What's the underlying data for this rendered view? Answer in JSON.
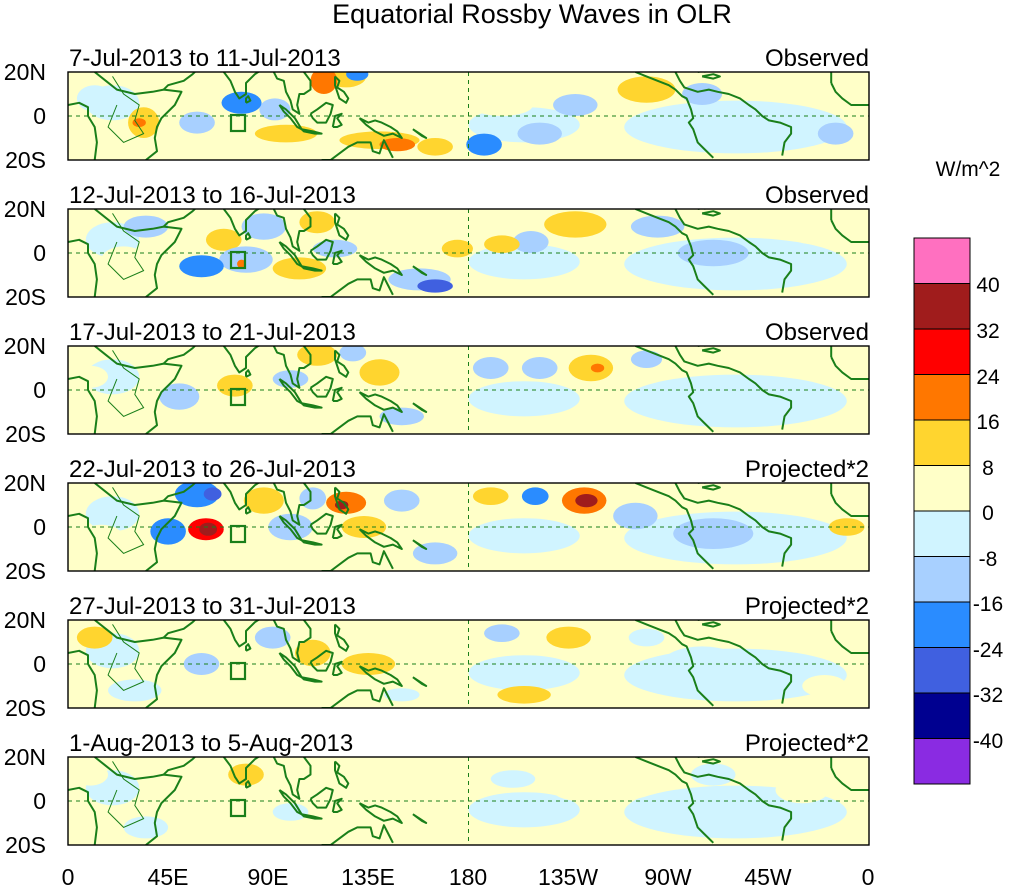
{
  "chart_data": {
    "type": "heatmap",
    "title": "Equatorial Rossby Waves in OLR",
    "units": "W/m^2",
    "x_tick_labels": [
      "0",
      "45E",
      "90E",
      "135E",
      "180",
      "135W",
      "90W",
      "45W",
      "0"
    ],
    "x_tick_lon": [
      0,
      45,
      90,
      135,
      180,
      225,
      270,
      315,
      360
    ],
    "y_tick_labels": [
      "20N",
      "0",
      "20S"
    ],
    "y_tick_lat": [
      20,
      0,
      -20
    ],
    "xlim": [
      0,
      360
    ],
    "ylim": [
      -20,
      20
    ],
    "colorbar": {
      "tick_labels": [
        "40",
        "32",
        "24",
        "16",
        "8",
        "0",
        "-8",
        "-16",
        "-24",
        "-32",
        "-40"
      ],
      "colors": [
        "#ff70c0",
        "#a01c1c",
        "#ff0000",
        "#ff7700",
        "#ffd52f",
        "#ffffc8",
        "#d0f4ff",
        "#a8d0ff",
        "#2a8cff",
        "#4060e0",
        "#000090",
        "#8a2be2"
      ]
    },
    "panels": [
      {
        "period": "7-Jul-2013 to 11-Jul-2013",
        "type_label": "Observed",
        "anomalies": [
          {
            "lon": 115,
            "lat": 16,
            "rlon": 6,
            "rlat": 6,
            "value": 20
          },
          {
            "lon": 125,
            "lat": 18,
            "rlon": 9,
            "rlat": 5,
            "value": 12
          },
          {
            "lon": 130,
            "lat": 19,
            "rlon": 5,
            "rlat": 3,
            "value": -22
          },
          {
            "lon": 78,
            "lat": 6,
            "rlon": 9,
            "rlat": 5,
            "value": -22
          },
          {
            "lon": 93,
            "lat": 3,
            "rlon": 7,
            "rlat": 5,
            "value": -14
          },
          {
            "lon": 58,
            "lat": -3,
            "rlon": 8,
            "rlat": 5,
            "value": -10
          },
          {
            "lon": 34,
            "lat": -3,
            "rlon": 7,
            "rlat": 7,
            "value": 10
          },
          {
            "lon": 32,
            "lat": -3,
            "rlon": 3,
            "rlat": 2,
            "value": 18
          },
          {
            "lon": 52,
            "lat": 12,
            "rlon": 8,
            "rlat": 6,
            "value": 8
          },
          {
            "lon": 98,
            "lat": -8,
            "rlon": 14,
            "rlat": 4,
            "value": 10
          },
          {
            "lon": 140,
            "lat": -11,
            "rlon": 18,
            "rlat": 4,
            "value": 10
          },
          {
            "lon": 148,
            "lat": -13,
            "rlon": 8,
            "rlat": 3,
            "value": 20
          },
          {
            "lon": 165,
            "lat": -14,
            "rlon": 8,
            "rlat": 4,
            "value": 10
          },
          {
            "lon": 187,
            "lat": -13,
            "rlon": 8,
            "rlat": 5,
            "value": -22
          },
          {
            "lon": 212,
            "lat": -8,
            "rlon": 10,
            "rlat": 5,
            "value": -10
          },
          {
            "lon": 195,
            "lat": 5,
            "rlon": 14,
            "rlat": 5,
            "value": 5
          },
          {
            "lon": 228,
            "lat": 5,
            "rlon": 10,
            "rlat": 5,
            "value": -10
          },
          {
            "lon": 260,
            "lat": 12,
            "rlon": 13,
            "rlat": 6,
            "value": 10
          },
          {
            "lon": 285,
            "lat": 10,
            "rlon": 9,
            "rlat": 5,
            "value": -8
          },
          {
            "lon": 300,
            "lat": -2,
            "rlon": 22,
            "rlat": 8,
            "value": -6
          },
          {
            "lon": 345,
            "lat": -8,
            "rlon": 8,
            "rlat": 5,
            "value": -8
          },
          {
            "lon": 12,
            "lat": 8,
            "rlon": 8,
            "rlat": 6,
            "value": -6
          }
        ]
      },
      {
        "period": "12-Jul-2013 to 16-Jul-2013",
        "type_label": "Observed",
        "anomalies": [
          {
            "lon": 60,
            "lat": -6,
            "rlon": 10,
            "rlat": 5,
            "value": -20
          },
          {
            "lon": 80,
            "lat": -3,
            "rlon": 12,
            "rlat": 6,
            "value": -12
          },
          {
            "lon": 78,
            "lat": -5,
            "rlon": 2,
            "rlat": 2,
            "value": 22
          },
          {
            "lon": 70,
            "lat": 6,
            "rlon": 8,
            "rlat": 5,
            "value": 9
          },
          {
            "lon": 104,
            "lat": -7,
            "rlon": 12,
            "rlat": 5,
            "value": 9
          },
          {
            "lon": 88,
            "lat": 12,
            "rlon": 10,
            "rlat": 6,
            "value": -10
          },
          {
            "lon": 112,
            "lat": 14,
            "rlon": 8,
            "rlat": 5,
            "value": 10
          },
          {
            "lon": 120,
            "lat": 2,
            "rlon": 10,
            "rlat": 4,
            "value": -10
          },
          {
            "lon": 150,
            "lat": 5,
            "rlon": 10,
            "rlat": 4,
            "value": 6
          },
          {
            "lon": 158,
            "lat": -12,
            "rlon": 14,
            "rlat": 5,
            "value": -14
          },
          {
            "lon": 165,
            "lat": -15,
            "rlon": 8,
            "rlat": 3,
            "value": -24
          },
          {
            "lon": 175,
            "lat": 2,
            "rlon": 7,
            "rlat": 4,
            "value": 10
          },
          {
            "lon": 195,
            "lat": 4,
            "rlon": 8,
            "rlat": 4,
            "value": 9
          },
          {
            "lon": 208,
            "lat": 5,
            "rlon": 8,
            "rlat": 5,
            "value": -8
          },
          {
            "lon": 228,
            "lat": 13,
            "rlon": 14,
            "rlat": 6,
            "value": 10
          },
          {
            "lon": 265,
            "lat": 12,
            "rlon": 12,
            "rlat": 5,
            "value": -8
          },
          {
            "lon": 290,
            "lat": 0,
            "rlon": 16,
            "rlat": 6,
            "value": -8
          },
          {
            "lon": 335,
            "lat": 10,
            "rlon": 12,
            "rlat": 6,
            "value": 6
          },
          {
            "lon": 25,
            "lat": -3,
            "rlon": 10,
            "rlat": 6,
            "value": 7
          },
          {
            "lon": 35,
            "lat": 12,
            "rlon": 10,
            "rlat": 5,
            "value": -8
          }
        ]
      },
      {
        "period": "17-Jul-2013 to 21-Jul-2013",
        "type_label": "Observed",
        "anomalies": [
          {
            "lon": 50,
            "lat": -3,
            "rlon": 9,
            "rlat": 6,
            "value": -10
          },
          {
            "lon": 75,
            "lat": 2,
            "rlon": 8,
            "rlat": 5,
            "value": 9
          },
          {
            "lon": 100,
            "lat": 5,
            "rlon": 8,
            "rlat": 4,
            "value": -8
          },
          {
            "lon": 112,
            "lat": 16,
            "rlon": 9,
            "rlat": 5,
            "value": 10
          },
          {
            "lon": 128,
            "lat": 17,
            "rlon": 6,
            "rlat": 4,
            "value": -12
          },
          {
            "lon": 140,
            "lat": 8,
            "rlon": 9,
            "rlat": 6,
            "value": 9
          },
          {
            "lon": 165,
            "lat": -5,
            "rlon": 8,
            "rlat": 4,
            "value": 7
          },
          {
            "lon": 190,
            "lat": 10,
            "rlon": 8,
            "rlat": 5,
            "value": -10
          },
          {
            "lon": 212,
            "lat": 10,
            "rlon": 8,
            "rlat": 5,
            "value": -8
          },
          {
            "lon": 235,
            "lat": 10,
            "rlon": 10,
            "rlat": 6,
            "value": 12
          },
          {
            "lon": 238,
            "lat": 10,
            "rlon": 3,
            "rlat": 2,
            "value": 20
          },
          {
            "lon": 260,
            "lat": 14,
            "rlon": 7,
            "rlat": 4,
            "value": -8
          },
          {
            "lon": 300,
            "lat": -2,
            "rlon": 22,
            "rlat": 7,
            "value": -7
          },
          {
            "lon": 340,
            "lat": 12,
            "rlon": 10,
            "rlat": 5,
            "value": 8
          },
          {
            "lon": 10,
            "lat": 6,
            "rlon": 8,
            "rlat": 5,
            "value": 7
          },
          {
            "lon": 150,
            "lat": -12,
            "rlon": 10,
            "rlat": 4,
            "value": -8
          }
        ]
      },
      {
        "period": "22-Jul-2013 to 26-Jul-2013",
        "type_label": "Projected*2",
        "anomalies": [
          {
            "lon": 45,
            "lat": -2,
            "rlon": 8,
            "rlat": 6,
            "value": -20
          },
          {
            "lon": 62,
            "lat": -1,
            "rlon": 8,
            "rlat": 5,
            "value": 26
          },
          {
            "lon": 63,
            "lat": -1,
            "rlon": 4,
            "rlat": 3,
            "value": 34
          },
          {
            "lon": 58,
            "lat": 15,
            "rlon": 10,
            "rlat": 6,
            "value": -20
          },
          {
            "lon": 65,
            "lat": 15,
            "rlon": 4,
            "rlat": 3,
            "value": -30
          },
          {
            "lon": 88,
            "lat": 12,
            "rlon": 9,
            "rlat": 6,
            "value": 10
          },
          {
            "lon": 100,
            "lat": 0,
            "rlon": 10,
            "rlat": 6,
            "value": -14
          },
          {
            "lon": 110,
            "lat": 13,
            "rlon": 6,
            "rlat": 5,
            "value": -14
          },
          {
            "lon": 125,
            "lat": 11,
            "rlon": 9,
            "rlat": 5,
            "value": 20
          },
          {
            "lon": 123,
            "lat": 10,
            "rlon": 3,
            "rlat": 2,
            "value": 34
          },
          {
            "lon": 133,
            "lat": 0,
            "rlon": 10,
            "rlat": 5,
            "value": 10
          },
          {
            "lon": 150,
            "lat": 12,
            "rlon": 8,
            "rlat": 5,
            "value": -10
          },
          {
            "lon": 190,
            "lat": 14,
            "rlon": 8,
            "rlat": 4,
            "value": 12
          },
          {
            "lon": 210,
            "lat": 14,
            "rlon": 6,
            "rlat": 4,
            "value": -20
          },
          {
            "lon": 232,
            "lat": 12,
            "rlon": 10,
            "rlat": 6,
            "value": 22
          },
          {
            "lon": 233,
            "lat": 12,
            "rlon": 5,
            "rlat": 3,
            "value": 34
          },
          {
            "lon": 255,
            "lat": 5,
            "rlon": 10,
            "rlat": 6,
            "value": -9
          },
          {
            "lon": 165,
            "lat": -12,
            "rlon": 10,
            "rlat": 5,
            "value": -8
          },
          {
            "lon": 290,
            "lat": -3,
            "rlon": 18,
            "rlat": 7,
            "value": -8
          },
          {
            "lon": 350,
            "lat": 0,
            "rlon": 8,
            "rlat": 4,
            "value": 9
          },
          {
            "lon": 15,
            "lat": -5,
            "rlon": 10,
            "rlat": 6,
            "value": 7
          }
        ]
      },
      {
        "period": "27-Jul-2013 to 31-Jul-2013",
        "type_label": "Projected*2",
        "anomalies": [
          {
            "lon": 12,
            "lat": 12,
            "rlon": 8,
            "rlat": 5,
            "value": 9
          },
          {
            "lon": 55,
            "lat": 12,
            "rlon": 7,
            "rlat": 5,
            "value": 8
          },
          {
            "lon": 60,
            "lat": 0,
            "rlon": 8,
            "rlat": 5,
            "value": -10
          },
          {
            "lon": 92,
            "lat": 12,
            "rlon": 8,
            "rlat": 5,
            "value": -8
          },
          {
            "lon": 110,
            "lat": 5,
            "rlon": 8,
            "rlat": 6,
            "value": 10
          },
          {
            "lon": 135,
            "lat": 0,
            "rlon": 12,
            "rlat": 5,
            "value": 10
          },
          {
            "lon": 160,
            "lat": 12,
            "rlon": 10,
            "rlat": 5,
            "value": 6
          },
          {
            "lon": 195,
            "lat": 14,
            "rlon": 8,
            "rlat": 4,
            "value": -8
          },
          {
            "lon": 225,
            "lat": 12,
            "rlon": 10,
            "rlat": 5,
            "value": 10
          },
          {
            "lon": 260,
            "lat": 12,
            "rlon": 8,
            "rlat": 4,
            "value": -7
          },
          {
            "lon": 205,
            "lat": -14,
            "rlon": 12,
            "rlat": 4,
            "value": 10
          },
          {
            "lon": 285,
            "lat": 0,
            "rlon": 18,
            "rlat": 8,
            "value": -7
          },
          {
            "lon": 340,
            "lat": -10,
            "rlon": 10,
            "rlat": 5,
            "value": 6
          },
          {
            "lon": 30,
            "lat": -12,
            "rlon": 12,
            "rlat": 5,
            "value": -6
          },
          {
            "lon": 150,
            "lat": -14,
            "rlon": 8,
            "rlat": 3,
            "value": -7
          }
        ]
      },
      {
        "period": "1-Aug-2013 to 5-Aug-2013",
        "type_label": "Projected*2",
        "anomalies": [
          {
            "lon": 10,
            "lat": 12,
            "rlon": 8,
            "rlat": 5,
            "value": 7
          },
          {
            "lon": 58,
            "lat": 0,
            "rlon": 6,
            "rlat": 4,
            "value": 8
          },
          {
            "lon": 80,
            "lat": 12,
            "rlon": 8,
            "rlat": 5,
            "value": 9
          },
          {
            "lon": 100,
            "lat": -5,
            "rlon": 8,
            "rlat": 4,
            "value": -7
          },
          {
            "lon": 120,
            "lat": 8,
            "rlon": 10,
            "rlat": 5,
            "value": 7
          },
          {
            "lon": 150,
            "lat": 5,
            "rlon": 10,
            "rlat": 5,
            "value": 6
          },
          {
            "lon": 170,
            "lat": -5,
            "rlon": 10,
            "rlat": 5,
            "value": 7
          },
          {
            "lon": 200,
            "lat": 10,
            "rlon": 10,
            "rlat": 4,
            "value": -7
          },
          {
            "lon": 230,
            "lat": 5,
            "rlon": 12,
            "rlat": 5,
            "value": 6
          },
          {
            "lon": 262,
            "lat": -3,
            "rlon": 10,
            "rlat": 5,
            "value": -7
          },
          {
            "lon": 330,
            "lat": 5,
            "rlon": 12,
            "rlat": 6,
            "value": 6
          },
          {
            "lon": 290,
            "lat": 12,
            "rlon": 10,
            "rlat": 5,
            "value": -6
          },
          {
            "lon": 35,
            "lat": -12,
            "rlon": 10,
            "rlat": 5,
            "value": -6
          },
          {
            "lon": 135,
            "lat": -12,
            "rlon": 10,
            "rlat": 4,
            "value": 6
          }
        ]
      }
    ]
  }
}
